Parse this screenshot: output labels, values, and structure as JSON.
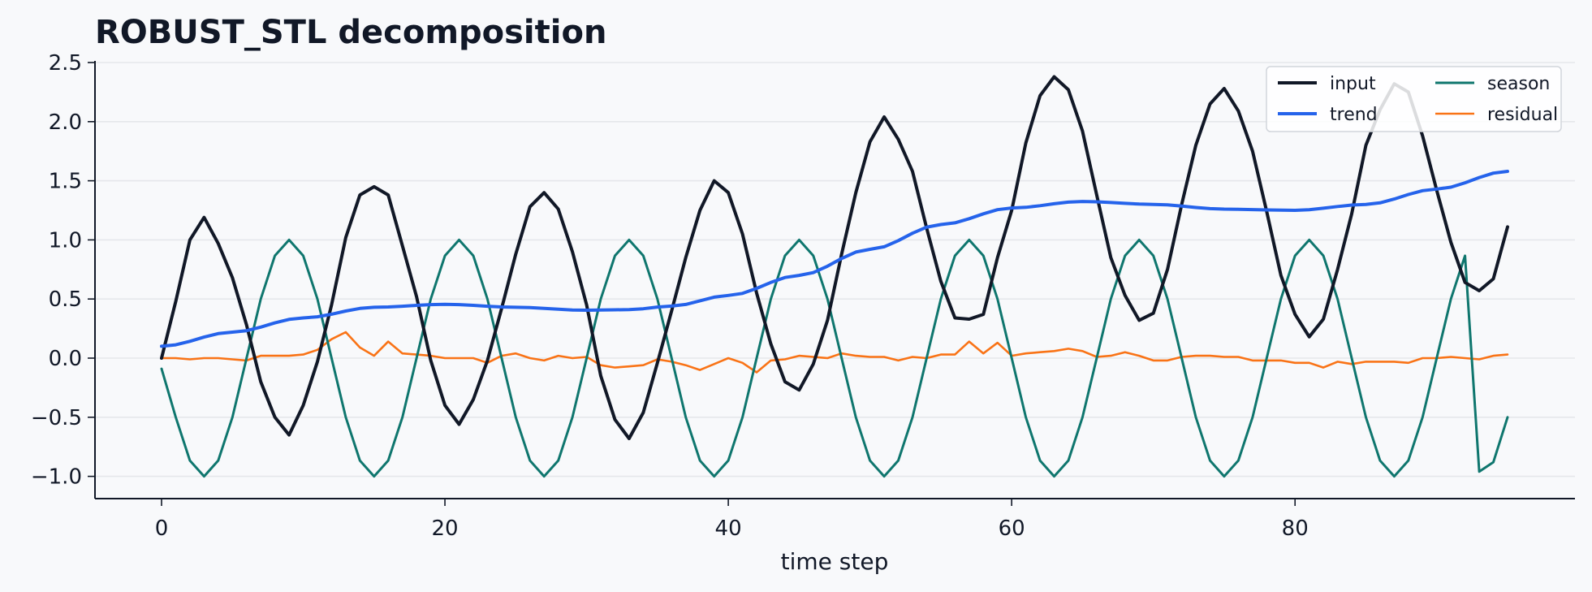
{
  "chart_data": {
    "type": "line",
    "title": "ROBUST_STL decomposition",
    "xlabel": "time step",
    "ylabel": "",
    "xlim": [
      -5,
      99
    ],
    "ylim": [
      -1.19,
      2.58
    ],
    "xticks": [
      0,
      20,
      40,
      60,
      80
    ],
    "yticks": [
      2.5,
      2.0,
      1.5,
      1.0,
      0.5,
      0.0,
      -0.5,
      -1.0
    ],
    "ytick_labels": [
      "2.5",
      "2.0",
      "1.5",
      "1.0",
      "0.5",
      "0.0",
      "−0.5",
      "−1.0"
    ],
    "grid": "horizontal",
    "legend_position": "top-right",
    "season_period": 12,
    "series": [
      {
        "name": "input",
        "color": "#111827",
        "knots": [
          [
            0,
            0.0
          ],
          [
            1,
            0.48
          ],
          [
            2,
            1.0
          ],
          [
            3,
            1.19
          ],
          [
            4,
            0.97
          ],
          [
            5,
            0.68
          ],
          [
            6,
            0.28
          ],
          [
            7,
            -0.2
          ],
          [
            8,
            -0.5
          ],
          [
            9,
            -0.65
          ],
          [
            10,
            -0.4
          ],
          [
            11,
            -0.03
          ],
          [
            12,
            0.45
          ],
          [
            13,
            1.02
          ],
          [
            14,
            1.38
          ],
          [
            15,
            1.45
          ],
          [
            16,
            1.38
          ],
          [
            17,
            0.95
          ],
          [
            18,
            0.52
          ],
          [
            19,
            -0.02
          ],
          [
            20,
            -0.4
          ],
          [
            21,
            -0.56
          ],
          [
            22,
            -0.35
          ],
          [
            23,
            -0.02
          ],
          [
            24,
            0.42
          ],
          [
            25,
            0.88
          ],
          [
            26,
            1.28
          ],
          [
            27,
            1.4
          ],
          [
            28,
            1.26
          ],
          [
            29,
            0.9
          ],
          [
            30,
            0.45
          ],
          [
            31,
            -0.15
          ],
          [
            32,
            -0.52
          ],
          [
            33,
            -0.68
          ],
          [
            34,
            -0.46
          ],
          [
            35,
            -0.04
          ],
          [
            36,
            0.4
          ],
          [
            37,
            0.85
          ],
          [
            38,
            1.25
          ],
          [
            39,
            1.5
          ],
          [
            40,
            1.4
          ],
          [
            41,
            1.05
          ],
          [
            42,
            0.55
          ],
          [
            43,
            0.12
          ],
          [
            44,
            -0.2
          ],
          [
            45,
            -0.27
          ],
          [
            46,
            -0.05
          ],
          [
            47,
            0.32
          ],
          [
            48,
            0.88
          ],
          [
            49,
            1.4
          ],
          [
            50,
            1.83
          ],
          [
            51,
            2.04
          ],
          [
            52,
            1.85
          ],
          [
            53,
            1.58
          ],
          [
            54,
            1.1
          ],
          [
            55,
            0.65
          ],
          [
            56,
            0.34
          ],
          [
            57,
            0.33
          ],
          [
            58,
            0.37
          ],
          [
            59,
            0.85
          ],
          [
            60,
            1.25
          ],
          [
            61,
            1.82
          ],
          [
            62,
            2.22
          ],
          [
            63,
            2.38
          ],
          [
            64,
            2.27
          ],
          [
            65,
            1.92
          ],
          [
            66,
            1.38
          ],
          [
            67,
            0.85
          ],
          [
            68,
            0.53
          ],
          [
            69,
            0.32
          ],
          [
            70,
            0.38
          ],
          [
            71,
            0.75
          ],
          [
            72,
            1.3
          ],
          [
            73,
            1.8
          ],
          [
            74,
            2.15
          ],
          [
            75,
            2.28
          ],
          [
            76,
            2.09
          ],
          [
            77,
            1.75
          ],
          [
            78,
            1.24
          ],
          [
            79,
            0.7
          ],
          [
            80,
            0.37
          ],
          [
            81,
            0.18
          ],
          [
            82,
            0.33
          ],
          [
            83,
            0.75
          ],
          [
            84,
            1.22
          ],
          [
            85,
            1.8
          ],
          [
            86,
            2.1
          ],
          [
            87,
            2.32
          ],
          [
            88,
            2.25
          ],
          [
            89,
            1.88
          ],
          [
            90,
            1.42
          ],
          [
            91,
            0.98
          ],
          [
            92,
            0.64
          ],
          [
            93,
            0.57
          ],
          [
            94,
            0.67
          ],
          [
            95,
            1.11
          ]
        ]
      },
      {
        "name": "trend",
        "color": "#2563eb",
        "knots": [
          [
            0,
            0.1
          ],
          [
            5,
            0.22
          ],
          [
            10,
            0.34
          ],
          [
            15,
            0.43
          ],
          [
            20,
            0.455
          ],
          [
            25,
            0.43
          ],
          [
            30,
            0.405
          ],
          [
            33,
            0.41
          ],
          [
            36,
            0.44
          ],
          [
            40,
            0.53
          ],
          [
            45,
            0.7
          ],
          [
            50,
            0.92
          ],
          [
            55,
            1.13
          ],
          [
            60,
            1.27
          ],
          [
            65,
            1.325
          ],
          [
            70,
            1.3
          ],
          [
            75,
            1.26
          ],
          [
            80,
            1.25
          ],
          [
            85,
            1.3
          ],
          [
            90,
            1.43
          ],
          [
            95,
            1.58
          ]
        ]
      },
      {
        "name": "season",
        "color": "#0f766e",
        "amplitude": 1.0,
        "end_phase_drop": true
      },
      {
        "name": "residual",
        "color": "#f97316",
        "values": [
          0.0,
          0.0,
          -0.01,
          0.0,
          0.0,
          -0.01,
          -0.02,
          0.02,
          0.02,
          0.02,
          0.03,
          0.07,
          0.16,
          0.22,
          0.09,
          0.02,
          0.14,
          0.04,
          0.03,
          0.02,
          0.0,
          0.0,
          0.0,
          -0.04,
          0.02,
          0.04,
          0.0,
          -0.02,
          0.02,
          0.0,
          0.01,
          -0.06,
          -0.08,
          -0.07,
          -0.06,
          -0.01,
          -0.03,
          -0.06,
          -0.1,
          -0.05,
          0.0,
          -0.04,
          -0.12,
          -0.02,
          -0.01,
          0.02,
          0.01,
          0.0,
          0.04,
          0.02,
          0.01,
          0.01,
          -0.02,
          0.01,
          0.0,
          0.03,
          0.03,
          0.14,
          0.04,
          0.13,
          0.02,
          0.04,
          0.05,
          0.06,
          0.08,
          0.06,
          0.01,
          0.02,
          0.05,
          0.02,
          -0.02,
          -0.02,
          0.01,
          0.02,
          0.02,
          0.01,
          0.01,
          -0.02,
          -0.02,
          -0.02,
          -0.04,
          -0.04,
          -0.08,
          -0.03,
          -0.05,
          -0.03,
          -0.03,
          -0.03,
          -0.04,
          0.0,
          0.0,
          0.01,
          0.0,
          -0.01,
          0.02,
          0.03
        ]
      }
    ]
  }
}
